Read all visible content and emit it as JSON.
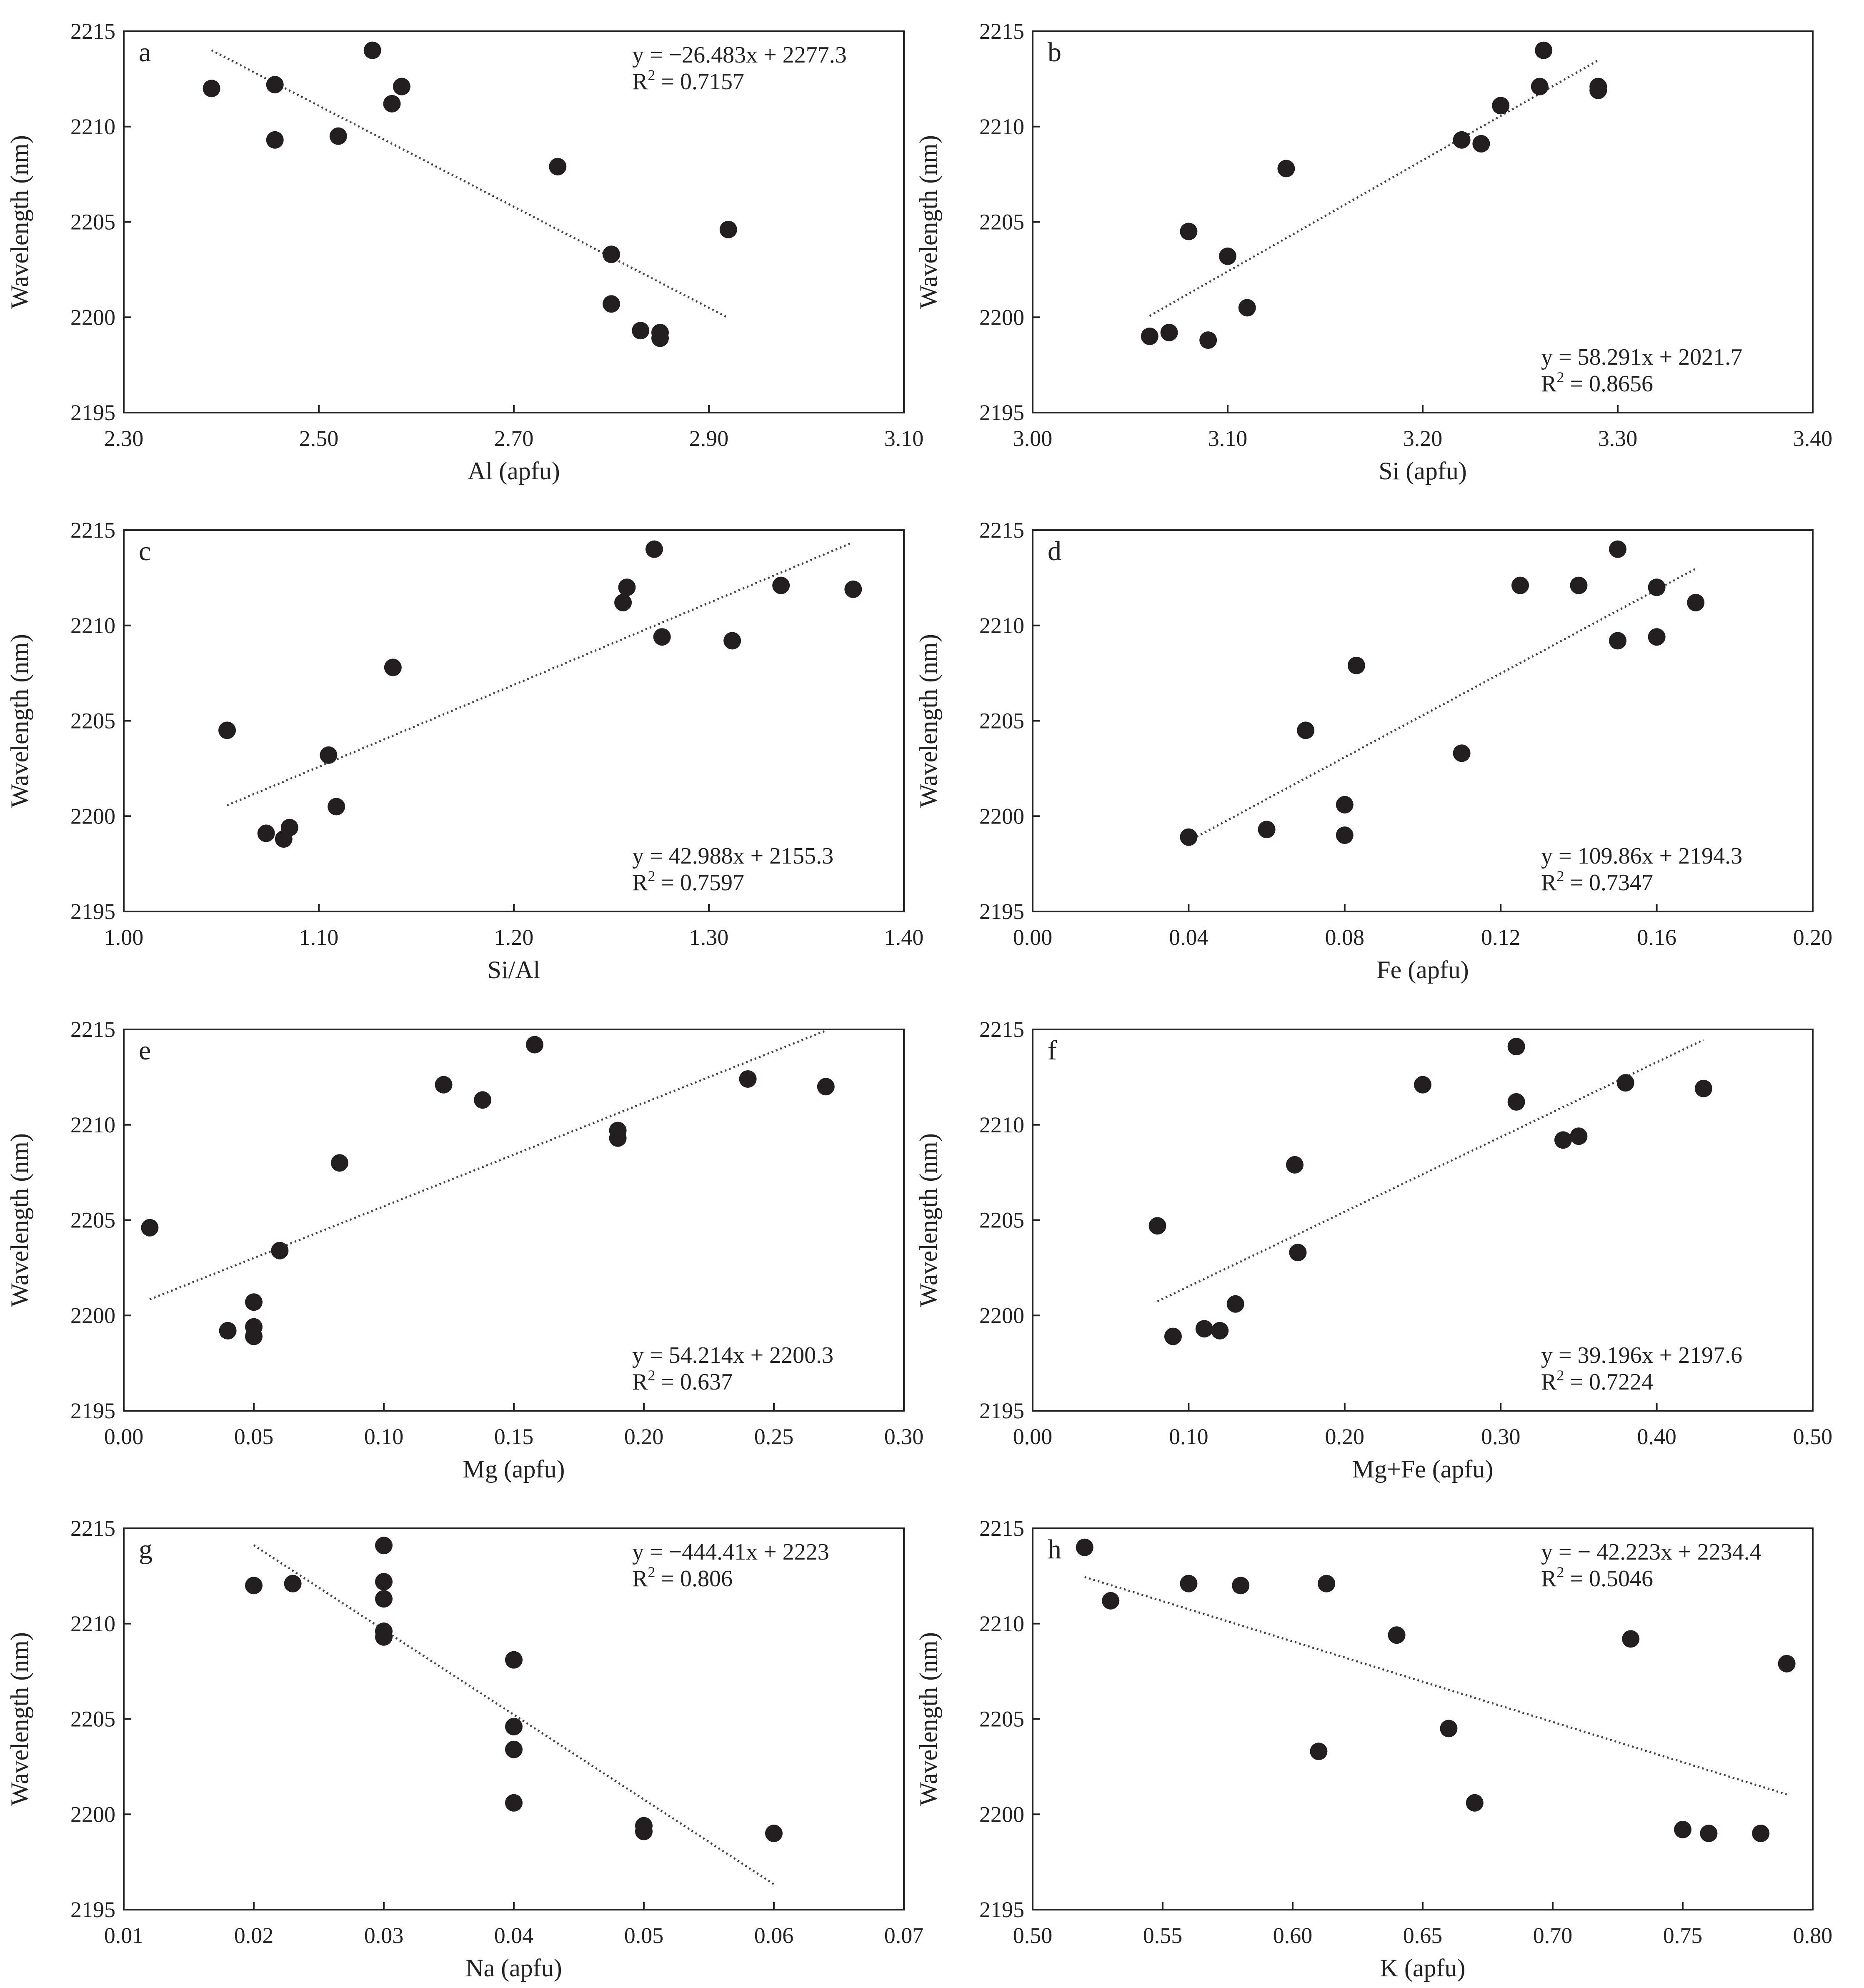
{
  "chart_data": [
    {
      "panel": "a",
      "type": "scatter",
      "xlabel": "Al (apfu)",
      "ylabel": "Wavelength (nm)",
      "xlim": [
        2.3,
        3.1
      ],
      "ylim": [
        2195,
        2215
      ],
      "xticks": [
        "2.30",
        "2.50",
        "2.70",
        "2.90",
        "3.10"
      ],
      "yticks": [
        "2195",
        "2200",
        "2205",
        "2210",
        "2215"
      ],
      "equation": "y = −26.483x + 2277.3",
      "r2_label": "R",
      "r2_value": " = 0.7157",
      "eq_pos": "top-right",
      "trend": {
        "x": [
          2.39,
          2.92
        ]
      },
      "points": [
        [
          2.39,
          2212.0
        ],
        [
          2.455,
          2212.2
        ],
        [
          2.455,
          2209.3
        ],
        [
          2.52,
          2209.5
        ],
        [
          2.555,
          2214.0
        ],
        [
          2.575,
          2211.2
        ],
        [
          2.585,
          2212.1
        ],
        [
          2.745,
          2207.9
        ],
        [
          2.8,
          2203.3
        ],
        [
          2.8,
          2200.7
        ],
        [
          2.83,
          2199.3
        ],
        [
          2.85,
          2199.2
        ],
        [
          2.85,
          2198.9
        ],
        [
          2.92,
          2204.6
        ]
      ]
    },
    {
      "panel": "b",
      "type": "scatter",
      "xlabel": "Si (apfu)",
      "ylabel": "Wavelength (nm)",
      "xlim": [
        3.0,
        3.4
      ],
      "ylim": [
        2195,
        2215
      ],
      "xticks": [
        "3.00",
        "3.10",
        "3.20",
        "3.30",
        "3.40"
      ],
      "yticks": [
        "2195",
        "2200",
        "2205",
        "2210",
        "2215"
      ],
      "equation": "y = 58.291x + 2021.7",
      "r2_label": "R",
      "r2_value": " = 0.8656",
      "eq_pos": "bottom-right",
      "trend": {
        "x": [
          3.06,
          3.29
        ]
      },
      "points": [
        [
          3.06,
          2199.0
        ],
        [
          3.07,
          2199.2
        ],
        [
          3.08,
          2204.5
        ],
        [
          3.09,
          2198.8
        ],
        [
          3.1,
          2203.2
        ],
        [
          3.11,
          2200.5
        ],
        [
          3.13,
          2207.8
        ],
        [
          3.22,
          2209.3
        ],
        [
          3.23,
          2209.1
        ],
        [
          3.24,
          2211.1
        ],
        [
          3.26,
          2212.1
        ],
        [
          3.262,
          2214.0
        ],
        [
          3.29,
          2212.1
        ],
        [
          3.29,
          2211.9
        ]
      ]
    },
    {
      "panel": "c",
      "type": "scatter",
      "xlabel": "Si/Al",
      "ylabel": "Wavelength (nm)",
      "xlim": [
        1.0,
        1.4
      ],
      "ylim": [
        2195,
        2215
      ],
      "xticks": [
        "1.00",
        "1.10",
        "1.20",
        "1.30",
        "1.40"
      ],
      "yticks": [
        "2195",
        "2200",
        "2205",
        "2210",
        "2215"
      ],
      "equation": "y = 42.988x + 2155.3",
      "r2_label": "R",
      "r2_value": " = 0.7597",
      "eq_pos": "bottom-right",
      "trend": {
        "x": [
          1.053,
          1.373
        ]
      },
      "points": [
        [
          1.053,
          2204.5
        ],
        [
          1.073,
          2199.1
        ],
        [
          1.082,
          2198.8
        ],
        [
          1.085,
          2199.4
        ],
        [
          1.105,
          2203.2
        ],
        [
          1.109,
          2200.5
        ],
        [
          1.138,
          2207.8
        ],
        [
          1.256,
          2211.2
        ],
        [
          1.258,
          2212.0
        ],
        [
          1.272,
          2214.0
        ],
        [
          1.276,
          2209.4
        ],
        [
          1.312,
          2209.2
        ],
        [
          1.337,
          2212.1
        ],
        [
          1.374,
          2211.9
        ]
      ]
    },
    {
      "panel": "d",
      "type": "scatter",
      "xlabel": "Fe (apfu)",
      "ylabel": "Wavelength (nm)",
      "xlim": [
        0.0,
        0.2
      ],
      "ylim": [
        2195,
        2215
      ],
      "xticks": [
        "0.00",
        "0.04",
        "0.08",
        "0.12",
        "0.16",
        "0.20"
      ],
      "yticks": [
        "2195",
        "2200",
        "2205",
        "2210",
        "2215"
      ],
      "equation": "y = 109.86x + 2194.3",
      "r2_label": "R",
      "r2_value": " = 0.7347",
      "eq_pos": "bottom-right",
      "trend": {
        "x": [
          0.04,
          0.17
        ]
      },
      "points": [
        [
          0.04,
          2198.9
        ],
        [
          0.06,
          2199.3
        ],
        [
          0.07,
          2204.5
        ],
        [
          0.08,
          2200.6
        ],
        [
          0.08,
          2199.0
        ],
        [
          0.083,
          2207.9
        ],
        [
          0.11,
          2203.3
        ],
        [
          0.125,
          2212.1
        ],
        [
          0.14,
          2212.1
        ],
        [
          0.15,
          2214.0
        ],
        [
          0.15,
          2209.2
        ],
        [
          0.16,
          2212.0
        ],
        [
          0.16,
          2209.4
        ],
        [
          0.17,
          2211.2
        ]
      ]
    },
    {
      "panel": "e",
      "type": "scatter",
      "xlabel": "Mg (apfu)",
      "ylabel": "Wavelength (nm)",
      "xlim": [
        0.0,
        0.3
      ],
      "ylim": [
        2195,
        2215
      ],
      "xticks": [
        "0.00",
        "0.05",
        "0.10",
        "0.15",
        "0.20",
        "0.25",
        "0.30"
      ],
      "yticks": [
        "2195",
        "2200",
        "2205",
        "2210",
        "2215"
      ],
      "equation": "y = 54.214x + 2200.3",
      "r2_label": "R",
      "r2_value": " = 0.637",
      "eq_pos": "bottom-right",
      "trend": {
        "x": [
          0.01,
          0.27
        ]
      },
      "points": [
        [
          0.01,
          2204.6
        ],
        [
          0.04,
          2199.2
        ],
        [
          0.05,
          2200.7
        ],
        [
          0.05,
          2199.4
        ],
        [
          0.05,
          2198.9
        ],
        [
          0.06,
          2203.4
        ],
        [
          0.083,
          2208.0
        ],
        [
          0.123,
          2212.1
        ],
        [
          0.138,
          2211.3
        ],
        [
          0.158,
          2214.2
        ],
        [
          0.19,
          2209.7
        ],
        [
          0.19,
          2209.3
        ],
        [
          0.24,
          2212.4
        ],
        [
          0.27,
          2212.0
        ]
      ]
    },
    {
      "panel": "f",
      "type": "scatter",
      "xlabel": "Mg+Fe (apfu)",
      "ylabel": "Wavelength (nm)",
      "xlim": [
        0.0,
        0.5
      ],
      "ylim": [
        2195,
        2215
      ],
      "xticks": [
        "0.00",
        "0.10",
        "0.20",
        "0.30",
        "0.40",
        "0.50"
      ],
      "yticks": [
        "2195",
        "2200",
        "2205",
        "2210",
        "2215"
      ],
      "equation": "y = 39.196x + 2197.6",
      "r2_label": "R",
      "r2_value": " = 0.7224",
      "eq_pos": "bottom-right",
      "trend": {
        "x": [
          0.08,
          0.43
        ]
      },
      "points": [
        [
          0.08,
          2204.7
        ],
        [
          0.09,
          2198.9
        ],
        [
          0.11,
          2199.3
        ],
        [
          0.12,
          2199.2
        ],
        [
          0.13,
          2200.6
        ],
        [
          0.168,
          2207.9
        ],
        [
          0.17,
          2203.3
        ],
        [
          0.25,
          2212.1
        ],
        [
          0.31,
          2214.1
        ],
        [
          0.31,
          2211.2
        ],
        [
          0.34,
          2209.2
        ],
        [
          0.35,
          2209.4
        ],
        [
          0.38,
          2212.2
        ],
        [
          0.43,
          2211.9
        ]
      ]
    },
    {
      "panel": "g",
      "type": "scatter",
      "xlabel": "Na (apfu)",
      "ylabel": "Wavelength (nm)",
      "xlim": [
        0.01,
        0.07
      ],
      "ylim": [
        2195,
        2215
      ],
      "xticks": [
        "0.01",
        "0.02",
        "0.03",
        "0.04",
        "0.05",
        "0.06",
        "0.07"
      ],
      "yticks": [
        "2195",
        "2200",
        "2205",
        "2210",
        "2215"
      ],
      "equation": "y = −444.41x + 2223",
      "r2_label": "R",
      "r2_value": " = 0.806",
      "eq_pos": "top-right",
      "trend": {
        "x": [
          0.02,
          0.06
        ]
      },
      "points": [
        [
          0.02,
          2212.0
        ],
        [
          0.023,
          2212.1
        ],
        [
          0.03,
          2214.1
        ],
        [
          0.03,
          2212.2
        ],
        [
          0.03,
          2211.3
        ],
        [
          0.03,
          2209.6
        ],
        [
          0.03,
          2209.3
        ],
        [
          0.04,
          2208.1
        ],
        [
          0.04,
          2204.6
        ],
        [
          0.04,
          2203.4
        ],
        [
          0.04,
          2200.6
        ],
        [
          0.05,
          2199.4
        ],
        [
          0.05,
          2199.1
        ],
        [
          0.06,
          2199.0
        ]
      ]
    },
    {
      "panel": "h",
      "type": "scatter",
      "xlabel": "K (apfu)",
      "ylabel": "Wavelength (nm)",
      "xlim": [
        0.5,
        0.8
      ],
      "ylim": [
        2195,
        2215
      ],
      "xticks": [
        "0.50",
        "0.55",
        "0.60",
        "0.65",
        "0.70",
        "0.75",
        "0.80"
      ],
      "yticks": [
        "2195",
        "2200",
        "2205",
        "2210",
        "2215"
      ],
      "equation": "y = − 42.223x + 2234.4",
      "r2_label": "R",
      "r2_value": " = 0.5046",
      "eq_pos": "top-right",
      "trend": {
        "x": [
          0.52,
          0.79
        ]
      },
      "points": [
        [
          0.52,
          2214.0
        ],
        [
          0.53,
          2211.2
        ],
        [
          0.56,
          2212.1
        ],
        [
          0.58,
          2212.0
        ],
        [
          0.61,
          2203.3
        ],
        [
          0.613,
          2212.1
        ],
        [
          0.64,
          2209.4
        ],
        [
          0.66,
          2204.5
        ],
        [
          0.67,
          2200.6
        ],
        [
          0.73,
          2209.2
        ],
        [
          0.75,
          2199.2
        ],
        [
          0.76,
          2199.0
        ],
        [
          0.78,
          2199.0
        ],
        [
          0.79,
          2207.9
        ]
      ]
    }
  ]
}
